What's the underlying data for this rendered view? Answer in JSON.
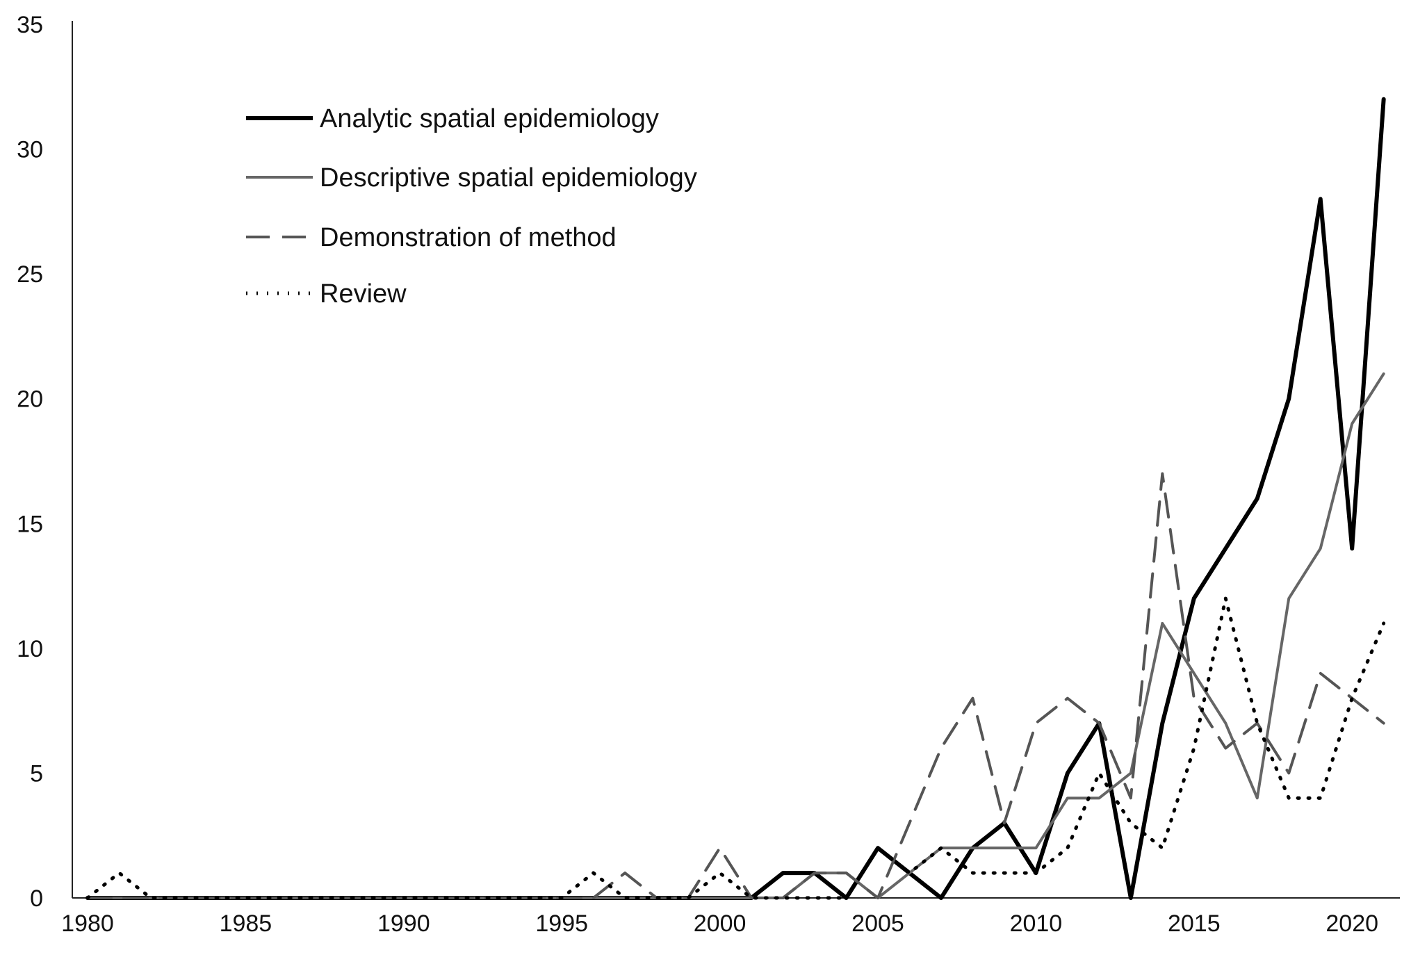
{
  "chart_data": {
    "type": "line",
    "title": "",
    "xlabel": "",
    "ylabel": "",
    "xlim": [
      1980,
      2021
    ],
    "ylim": [
      0,
      35
    ],
    "grid": false,
    "legend_position": "top-left",
    "x_ticks": [
      "1980",
      "1985",
      "1990",
      "1995",
      "2000",
      "2005",
      "2010",
      "2015",
      "2020"
    ],
    "y_ticks": [
      "0",
      "5",
      "10",
      "15",
      "20",
      "25",
      "30",
      "35"
    ],
    "x": [
      1980,
      1981,
      1982,
      1983,
      1984,
      1985,
      1986,
      1987,
      1988,
      1989,
      1990,
      1991,
      1992,
      1993,
      1994,
      1995,
      1996,
      1997,
      1998,
      1999,
      2000,
      2001,
      2002,
      2003,
      2004,
      2005,
      2006,
      2007,
      2008,
      2009,
      2010,
      2011,
      2012,
      2013,
      2014,
      2015,
      2016,
      2017,
      2018,
      2019,
      2020,
      2021
    ],
    "series": [
      {
        "name": "Analytic spatial epidemiology",
        "color": "#000000",
        "dash": "solid",
        "values": [
          0,
          0,
          0,
          0,
          0,
          0,
          0,
          0,
          0,
          0,
          0,
          0,
          0,
          0,
          0,
          0,
          0,
          0,
          0,
          0,
          0,
          0,
          1,
          1,
          0,
          2,
          1,
          0,
          2,
          3,
          1,
          5,
          7,
          0,
          7,
          12,
          14,
          16,
          20,
          28,
          14,
          32
        ]
      },
      {
        "name": "Descriptive spatial epidemiology",
        "color": "#666666",
        "dash": "solid",
        "values": [
          0,
          0,
          0,
          0,
          0,
          0,
          0,
          0,
          0,
          0,
          0,
          0,
          0,
          0,
          0,
          0,
          0,
          0,
          0,
          0,
          0,
          0,
          0,
          1,
          1,
          0,
          1,
          2,
          2,
          2,
          2,
          4,
          4,
          5,
          11,
          9,
          7,
          4,
          12,
          14,
          19,
          21
        ]
      },
      {
        "name": "Demonstration of method",
        "color": "#555555",
        "dash": "dashed",
        "values": [
          0,
          0,
          0,
          0,
          0,
          0,
          0,
          0,
          0,
          0,
          0,
          0,
          0,
          0,
          0,
          0,
          0,
          1,
          0,
          0,
          2,
          0,
          0,
          1,
          1,
          0,
          3,
          6,
          8,
          3,
          7,
          8,
          7,
          4,
          17,
          8,
          6,
          7,
          5,
          9,
          8,
          7
        ]
      },
      {
        "name": "Review",
        "color": "#000000",
        "dash": "dotted",
        "values": [
          0,
          1,
          0,
          0,
          0,
          0,
          0,
          0,
          0,
          0,
          0,
          0,
          0,
          0,
          0,
          0,
          1,
          0,
          0,
          0,
          1,
          0,
          0,
          0,
          0,
          2,
          1,
          2,
          1,
          1,
          1,
          2,
          5,
          3,
          2,
          6,
          12,
          7,
          4,
          4,
          8,
          11
        ]
      }
    ]
  }
}
